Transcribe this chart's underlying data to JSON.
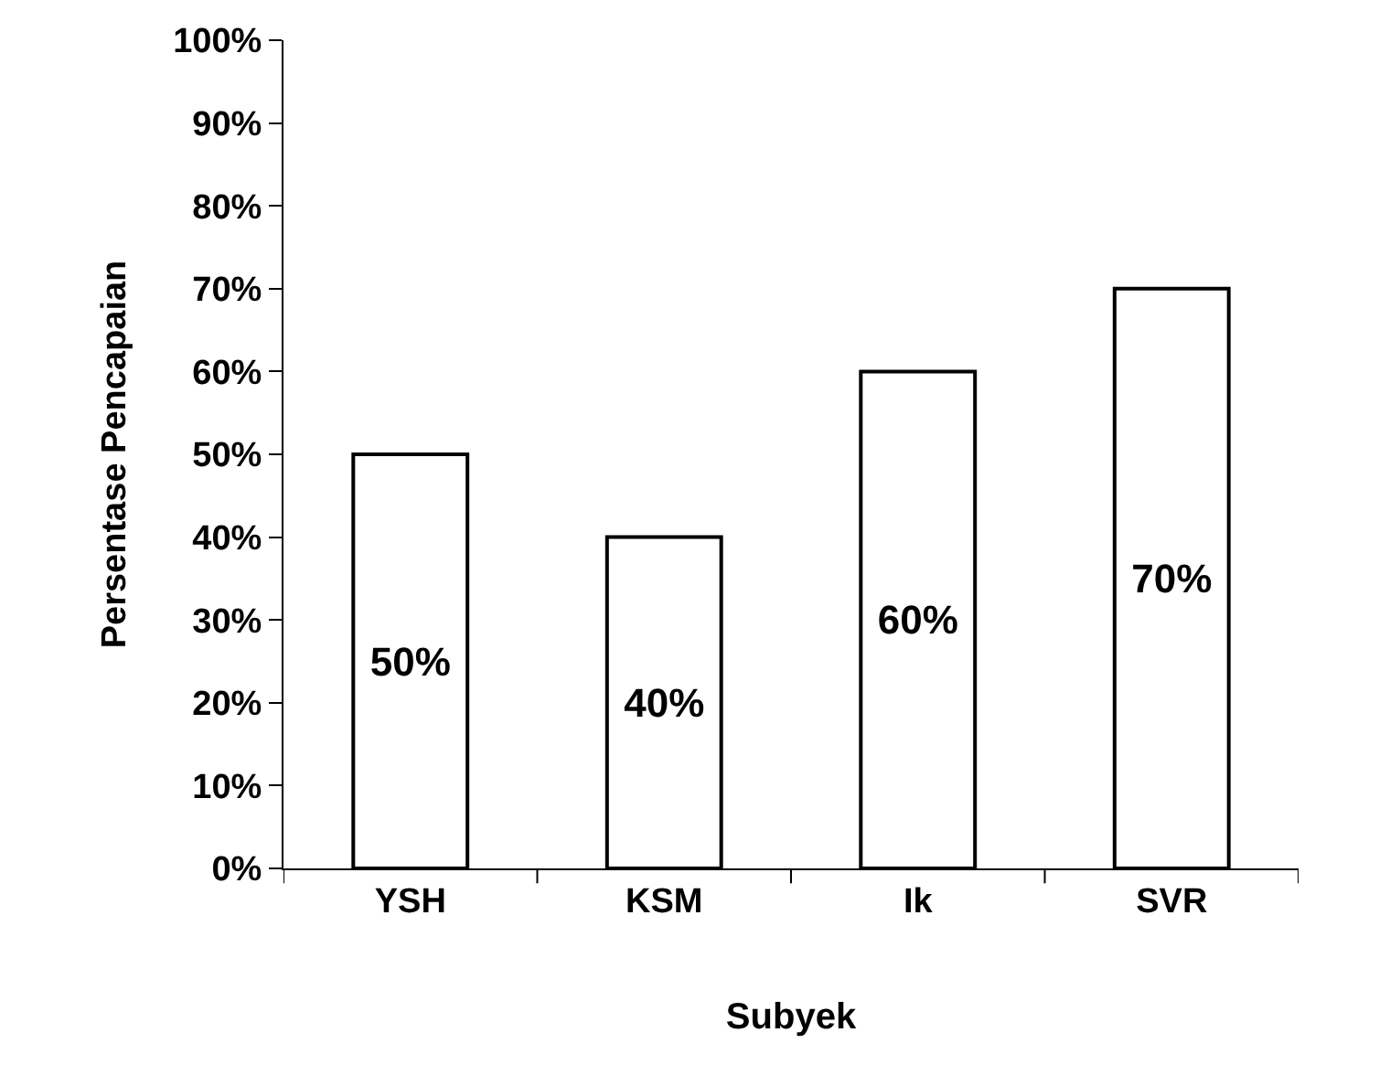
{
  "chart_data": {
    "type": "bar",
    "xlabel": "Subyek",
    "ylabel": "Persentase Pencapaian",
    "categories": [
      "YSH",
      "KSM",
      "Ik",
      "SVR"
    ],
    "values": [
      50,
      40,
      60,
      70
    ],
    "value_labels": [
      "50%",
      "40%",
      "60%",
      "70%"
    ],
    "color": "#ffffff",
    "ylim": [
      0,
      100
    ],
    "yticks": [
      {
        "value": 0,
        "label": "0%"
      },
      {
        "value": 10,
        "label": "10%"
      },
      {
        "value": 20,
        "label": "20%"
      },
      {
        "value": 30,
        "label": "30%"
      },
      {
        "value": 40,
        "label": "40%"
      },
      {
        "value": 50,
        "label": "50%"
      },
      {
        "value": 60,
        "label": "60%"
      },
      {
        "value": 70,
        "label": "70%"
      },
      {
        "value": 80,
        "label": "80%"
      },
      {
        "value": 90,
        "label": "90%"
      },
      {
        "value": 100,
        "label": "100%"
      }
    ],
    "grid": false
  }
}
